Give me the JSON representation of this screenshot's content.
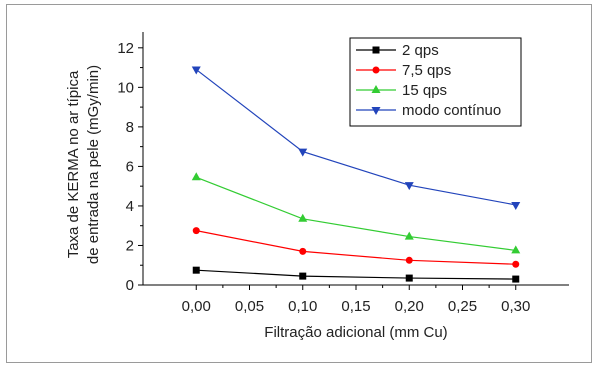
{
  "chart_data": {
    "type": "line",
    "x": [
      0.0,
      0.1,
      0.2,
      0.3
    ],
    "xlabel": "Filtração adicional (mm Cu)",
    "ylabel_lines": [
      "Taxa de KERMA no ar típica",
      "de entrada na pele (mGy/min)"
    ],
    "xlim": [
      -0.05,
      0.35
    ],
    "ylim": [
      0,
      12.8
    ],
    "xticks": [
      "0,00",
      "0,05",
      "0,10",
      "0,15",
      "0,20",
      "0,25",
      "0,30"
    ],
    "xtick_values": [
      0.0,
      0.05,
      0.1,
      0.15,
      0.2,
      0.25,
      0.3
    ],
    "yticks": [
      "0",
      "2",
      "4",
      "6",
      "8",
      "10",
      "12"
    ],
    "ytick_values": [
      0,
      2,
      4,
      6,
      8,
      10,
      12
    ],
    "grid": false,
    "legend_position": "top-right",
    "series": [
      {
        "name": "2 qps",
        "values": [
          0.75,
          0.45,
          0.35,
          0.3
        ],
        "color": "#000000",
        "marker": "square"
      },
      {
        "name": "7,5 qps",
        "values": [
          2.75,
          1.7,
          1.25,
          1.05
        ],
        "color": "#ff0000",
        "marker": "circle"
      },
      {
        "name": "15 qps",
        "values": [
          5.45,
          3.35,
          2.45,
          1.75
        ],
        "color": "#33cc33",
        "marker": "triangle-up"
      },
      {
        "name": "modo contínuo",
        "values": [
          10.9,
          6.75,
          5.05,
          4.05
        ],
        "color": "#2244bb",
        "marker": "triangle-down"
      }
    ]
  }
}
